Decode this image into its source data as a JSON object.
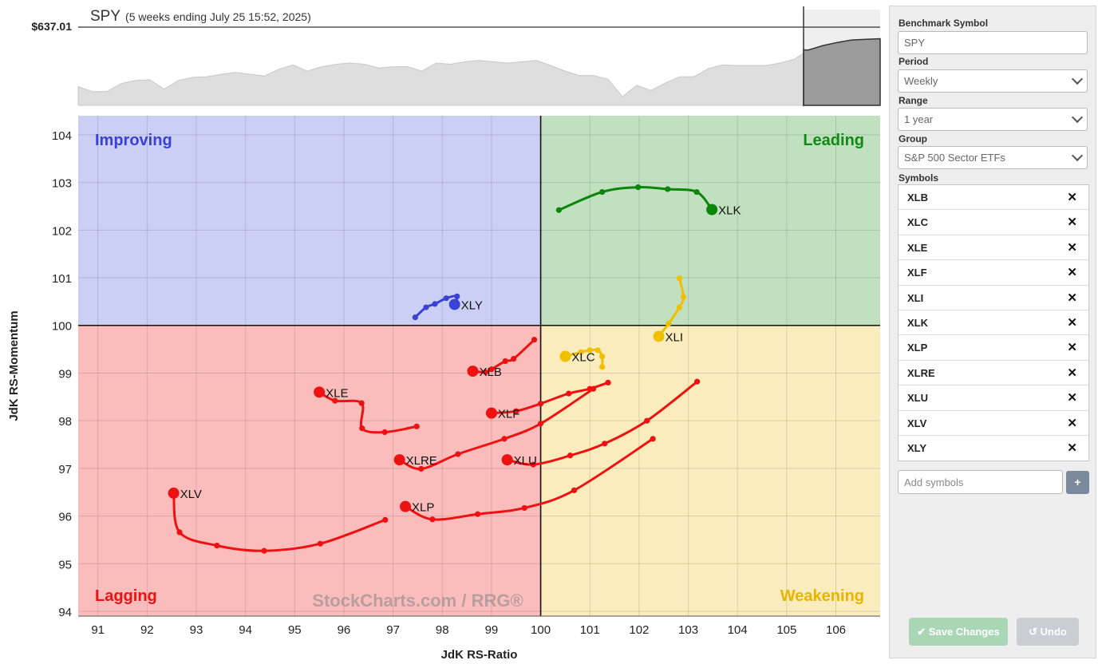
{
  "header": {
    "symbol": "SPY",
    "subtitle": "(5 weeks ending July 25 15:52, 2025)",
    "last_price": "$637.01"
  },
  "watermark": "StockCharts.com / RRG®",
  "chart_data": {
    "type": "scatter",
    "subtype": "relative-rotation-graph",
    "xlabel": "JdK RS-Ratio",
    "ylabel": "JdK RS-Momentum",
    "xlim": [
      90.6,
      106.9
    ],
    "ylim": [
      93.9,
      104.4
    ],
    "x_ticks": [
      91,
      92,
      93,
      94,
      95,
      96,
      97,
      98,
      99,
      100,
      101,
      102,
      103,
      104,
      105,
      106
    ],
    "x_tick_labels": [
      "91",
      "92",
      "93",
      "94",
      "95",
      "96",
      "97",
      "98",
      "99",
      "100",
      "101",
      "102",
      "103",
      "104",
      "105",
      "106"
    ],
    "y_ticks": [
      94,
      95,
      96,
      97,
      98,
      99,
      100,
      101,
      102,
      103,
      104
    ],
    "center": [
      100,
      100
    ],
    "quadrants": [
      {
        "name": "Improving",
        "label": "Improving",
        "color": "#3a3fd6",
        "fill": "#cbcff3"
      },
      {
        "name": "Leading",
        "label": "Leading",
        "color": "#0f8a14",
        "fill": "#c0e0c0"
      },
      {
        "name": "Lagging",
        "label": "Lagging",
        "color": "#ee1111",
        "fill": "#fbbcbc"
      },
      {
        "name": "Weakening",
        "label": "Weakening",
        "color": "#e8b400",
        "fill": "#fbecbe"
      }
    ],
    "series": [
      {
        "name": "XLK",
        "color": "#0a860a",
        "points": [
          [
            100.37,
            102.42
          ],
          [
            101.25,
            102.8
          ],
          [
            101.98,
            102.9
          ],
          [
            102.58,
            102.86
          ],
          [
            103.17,
            102.8
          ],
          [
            103.48,
            102.43
          ]
        ]
      },
      {
        "name": "XLI",
        "color": "#f0c000",
        "points": [
          [
            102.82,
            100.99
          ],
          [
            102.9,
            100.6
          ],
          [
            102.82,
            100.38
          ],
          [
            102.6,
            100.04
          ],
          [
            102.4,
            99.77
          ]
        ]
      },
      {
        "name": "XLC",
        "color": "#f0c000",
        "points": [
          [
            101.25,
            99.13
          ],
          [
            101.25,
            99.35
          ],
          [
            101.16,
            99.48
          ],
          [
            101.0,
            99.48
          ],
          [
            100.82,
            99.44
          ],
          [
            100.5,
            99.35
          ]
        ]
      },
      {
        "name": "XLY",
        "color": "#3b43d6",
        "points": [
          [
            97.45,
            100.17
          ],
          [
            97.67,
            100.38
          ],
          [
            97.85,
            100.45
          ],
          [
            98.08,
            100.57
          ],
          [
            98.3,
            100.61
          ],
          [
            98.25,
            100.44
          ]
        ]
      },
      {
        "name": "XLB",
        "color": "#ee1111",
        "points": [
          [
            99.87,
            99.7
          ],
          [
            99.45,
            99.3
          ],
          [
            99.28,
            99.25
          ],
          [
            99.0,
            99.08
          ],
          [
            98.88,
            99.02
          ],
          [
            98.62,
            99.04
          ]
        ]
      },
      {
        "name": "XLE",
        "color": "#ee1111",
        "points": [
          [
            97.48,
            97.88
          ],
          [
            96.83,
            97.76
          ],
          [
            96.37,
            97.84
          ],
          [
            96.36,
            98.37
          ],
          [
            95.82,
            98.42
          ],
          [
            95.5,
            98.6
          ]
        ]
      },
      {
        "name": "XLF",
        "color": "#ee1111",
        "points": [
          [
            101.37,
            98.8
          ],
          [
            101.0,
            98.67
          ],
          [
            100.57,
            98.57
          ],
          [
            100.0,
            98.36
          ],
          [
            99.5,
            98.2
          ],
          [
            99.0,
            98.16
          ]
        ]
      },
      {
        "name": "XLRE",
        "color": "#ee1111",
        "points": [
          [
            101.07,
            98.67
          ],
          [
            100.0,
            97.94
          ],
          [
            99.26,
            97.62
          ],
          [
            98.32,
            97.3
          ],
          [
            97.57,
            96.99
          ],
          [
            97.13,
            97.18
          ]
        ]
      },
      {
        "name": "XLU",
        "color": "#ee1111",
        "points": [
          [
            103.18,
            98.82
          ],
          [
            102.16,
            98.0
          ],
          [
            101.3,
            97.52
          ],
          [
            100.6,
            97.27
          ],
          [
            99.85,
            97.08
          ],
          [
            99.32,
            97.18
          ]
        ]
      },
      {
        "name": "XLP",
        "color": "#ee1111",
        "points": [
          [
            102.28,
            97.62
          ],
          [
            100.68,
            96.54
          ],
          [
            99.67,
            96.17
          ],
          [
            98.72,
            96.04
          ],
          [
            97.8,
            95.93
          ],
          [
            97.25,
            96.2
          ]
        ]
      },
      {
        "name": "XLV",
        "color": "#ee1111",
        "points": [
          [
            96.84,
            95.92
          ],
          [
            95.52,
            95.42
          ],
          [
            94.38,
            95.27
          ],
          [
            93.42,
            95.38
          ],
          [
            92.66,
            95.66
          ],
          [
            92.54,
            96.48
          ]
        ]
      }
    ],
    "price_series": {
      "symbol": "SPY",
      "last_price": 637.01,
      "values": [
        0.3,
        0.22,
        0.22,
        0.35,
        0.4,
        0.41,
        0.26,
        0.4,
        0.45,
        0.46,
        0.5,
        0.53,
        0.5,
        0.47,
        0.58,
        0.65,
        0.55,
        0.62,
        0.66,
        0.68,
        0.66,
        0.6,
        0.62,
        0.62,
        0.55,
        0.68,
        0.66,
        0.7,
        0.72,
        0.7,
        0.68,
        0.7,
        0.72,
        0.64,
        0.55,
        0.48,
        0.48,
        0.42,
        0.14,
        0.32,
        0.24,
        0.36,
        0.46,
        0.46,
        0.59,
        0.65,
        0.64,
        0.64,
        0.64,
        0.68,
        0.74,
        0.89,
        0.96,
        1.01,
        1.05,
        1.06,
        1.07
      ]
    }
  },
  "sidebar": {
    "benchmark_label": "Benchmark Symbol",
    "benchmark_value": "SPY",
    "period_label": "Period",
    "period_value": "Weekly",
    "range_label": "Range",
    "range_value": "1 year",
    "group_label": "Group",
    "group_value": "S&P 500 Sector ETFs",
    "symbols_label": "Symbols",
    "symbols": [
      "XLB",
      "XLC",
      "XLE",
      "XLF",
      "XLI",
      "XLK",
      "XLP",
      "XLRE",
      "XLU",
      "XLV",
      "XLY"
    ],
    "add_placeholder": "Add symbols",
    "add_button": "+",
    "save_label": "Save Changes",
    "undo_label": "Undo"
  }
}
